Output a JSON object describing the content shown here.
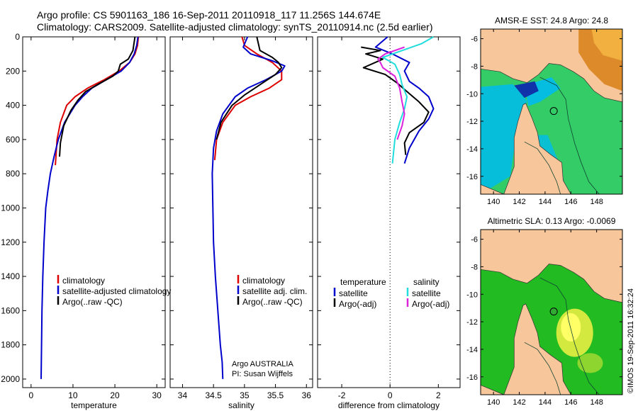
{
  "header": {
    "line1": "Argo profile: CS 5901163_186 16-Sep-2011 20110918_117 11.256S 144.674E",
    "line2": "Climatology: CARS2009. Satellite-adjusted climatology: synTS_20110914.nc (2.5d earlier)"
  },
  "footer": {
    "stamp": "©IMOS 19-Sep-2011 16:32:24"
  },
  "colors": {
    "climatology": "#dd0000",
    "satellite": "#0000cc",
    "argo": "#000000",
    "cyan": "#22dddd",
    "magenta": "#dd22dd",
    "land": "#f7c69b",
    "sst_cool": "#00bbee",
    "sst_ocean": "#33cc66",
    "sla_ocean": "#22bb22"
  },
  "chart_data": [
    {
      "type": "line",
      "title": "",
      "xlabel": "temperature",
      "ylabel": "",
      "xlim": [
        -2,
        32
      ],
      "ylim": [
        2050,
        0
      ],
      "xticks": [
        0,
        10,
        20,
        30
      ],
      "yticks": [
        0,
        200,
        400,
        600,
        800,
        1000,
        1200,
        1400,
        1600,
        1800,
        2000
      ],
      "legend": {
        "position": "lower-right",
        "entries": [
          "climatology",
          "satellite-adjusted climatology",
          "Argo(..raw -QC)"
        ]
      },
      "series": [
        {
          "name": "climatology",
          "color": "#dd0000",
          "x": [
            25.6,
            25.4,
            24.8,
            23.5,
            21,
            17.5,
            13.5,
            10.5,
            8.5,
            7,
            6.2,
            5.8
          ],
          "y": [
            0,
            50,
            100,
            150,
            200,
            250,
            300,
            350,
            400,
            500,
            600,
            750
          ]
        },
        {
          "name": "satellite-adjusted climatology",
          "color": "#0000cc",
          "x": [
            25.5,
            25.2,
            24.6,
            23.5,
            21.5,
            18,
            14.5,
            12.3,
            10.5,
            8,
            6.5,
            5.5,
            4.6,
            4,
            3.5,
            3.1,
            2.8,
            2.6,
            2.5,
            2.45,
            2.4
          ],
          "y": [
            0,
            50,
            100,
            150,
            200,
            250,
            300,
            350,
            400,
            500,
            600,
            700,
            800,
            900,
            1000,
            1200,
            1400,
            1600,
            1800,
            1900,
            2000
          ]
        },
        {
          "name": "Argo(..raw -QC)",
          "color": "#000000",
          "x": [
            24.8,
            24.3,
            23.2,
            21.3,
            20.8,
            19.5,
            16.5,
            13,
            11.2,
            9.5,
            7.8,
            7,
            6.8
          ],
          "y": [
            0,
            80,
            130,
            160,
            200,
            230,
            270,
            320,
            370,
            430,
            520,
            620,
            700
          ]
        }
      ]
    },
    {
      "type": "line",
      "title": "",
      "xlabel": "salinity",
      "ylabel": "",
      "xlim": [
        33.8,
        36.1
      ],
      "ylim": [
        2050,
        0
      ],
      "xticks": [
        34,
        34.5,
        35,
        35.5,
        36
      ],
      "yticks": [
        0,
        200,
        400,
        600,
        800,
        1000,
        1200,
        1400,
        1600,
        1800,
        2000
      ],
      "legend": {
        "position": "lower-right",
        "entries": [
          "climatology",
          "satellite adj. clim.",
          "Argo(..raw -QC)"
        ]
      },
      "annotation": [
        "Argo AUSTRALIA",
        "PI: Susan Wijffels"
      ],
      "series": [
        {
          "name": "climatology",
          "color": "#dd0000",
          "x": [
            34.96,
            35.0,
            35.2,
            35.45,
            35.6,
            35.6,
            35.4,
            35.1,
            34.85,
            34.65,
            34.55,
            34.52
          ],
          "y": [
            0,
            50,
            100,
            150,
            200,
            250,
            300,
            350,
            400,
            500,
            600,
            720
          ]
        },
        {
          "name": "satellite adj. clim.",
          "color": "#0000cc",
          "x": [
            35.05,
            34.98,
            35.1,
            35.45,
            35.65,
            35.6,
            35.35,
            35.05,
            34.85,
            34.65,
            34.55,
            34.5,
            34.48,
            34.49,
            34.5,
            34.53,
            34.57,
            34.61,
            34.64,
            34.65
          ],
          "y": [
            0,
            60,
            100,
            140,
            170,
            200,
            250,
            300,
            350,
            450,
            550,
            650,
            800,
            1000,
            1200,
            1400,
            1600,
            1800,
            1900,
            2000
          ]
        },
        {
          "name": "Argo(..raw -QC)",
          "color": "#000000",
          "x": [
            35.2,
            35.25,
            35.45,
            35.55,
            35.6,
            35.5,
            35.25,
            35.0,
            34.8,
            34.62,
            34.55
          ],
          "y": [
            0,
            80,
            120,
            150,
            180,
            220,
            280,
            340,
            400,
            500,
            600
          ]
        }
      ]
    },
    {
      "type": "line",
      "title": "",
      "xlabel": "difference from climatology",
      "ylabel": "",
      "xlim": [
        -3,
        2.9
      ],
      "ylim": [
        2050,
        0
      ],
      "xticks": [
        -2,
        0,
        2
      ],
      "yticks": [
        0,
        200,
        400,
        600,
        800,
        1000,
        1200,
        1400,
        1600,
        1800,
        2000
      ],
      "legend": {
        "position": "lower",
        "groups": [
          {
            "header": "temperature",
            "entries": [
              "satellite",
              "Argo(-adj)"
            ]
          },
          {
            "header": "salinity",
            "entries": [
              "satellite",
              "Argo(-adj)"
            ]
          }
        ]
      },
      "series": [
        {
          "name": "temperature satellite",
          "color": "#0000cc",
          "x": [
            -0.1,
            -0.6,
            0.1,
            0.8,
            0.6,
            0.8,
            1.2,
            1.6,
            1.8,
            1.6,
            1.2,
            0.8,
            0.6
          ],
          "y": [
            0,
            60,
            100,
            150,
            200,
            260,
            300,
            350,
            420,
            480,
            550,
            650,
            740
          ]
        },
        {
          "name": "temperature Argo(-adj)",
          "color": "#000000",
          "x": [
            -1.2,
            -0.4,
            -1.0,
            -0.3,
            -1.1,
            -0.2,
            0.3,
            0.7,
            1.2,
            1.6,
            1.4,
            0.8,
            0.6,
            0.65
          ],
          "y": [
            60,
            80,
            100,
            130,
            180,
            220,
            270,
            320,
            380,
            440,
            500,
            560,
            620,
            690
          ]
        },
        {
          "name": "salinity satellite",
          "color": "#22dddd",
          "x": [
            1.8,
            1.3,
            0.5,
            -0.3,
            0.2,
            0.4,
            0.5,
            0.7,
            0.6,
            0.4,
            0.2,
            0.1
          ],
          "y": [
            0,
            40,
            80,
            120,
            160,
            220,
            280,
            350,
            420,
            500,
            600,
            740
          ]
        },
        {
          "name": "salinity Argo(-adj)",
          "color": "#dd22dd",
          "x": [
            0.6,
            -0.2,
            -0.5,
            -0.4,
            -0.3,
            0.2,
            0.4,
            0.5,
            0.6,
            0.5,
            0.3
          ],
          "y": [
            60,
            100,
            130,
            150,
            180,
            230,
            300,
            380,
            450,
            520,
            600
          ]
        }
      ]
    },
    {
      "type": "heatmap",
      "title": "AMSR-E SST: 24.8 Argo: 24.8",
      "xticks": [
        140,
        142,
        144,
        146,
        148
      ],
      "yticks": [
        -6,
        -8,
        -10,
        -12,
        -14,
        -16
      ],
      "xlim": [
        139,
        150
      ],
      "ylim": [
        -17.3,
        -5.3
      ],
      "marker": {
        "lon": 144.674,
        "lat": -11.256
      }
    },
    {
      "type": "heatmap",
      "title": "Altimetric SLA: 0.13 Argo: -0.0069",
      "xticks": [
        140,
        142,
        144,
        146,
        148
      ],
      "yticks": [
        -6,
        -8,
        -10,
        -12,
        -14,
        -16
      ],
      "xlim": [
        139,
        150
      ],
      "ylim": [
        -17.3,
        -5.3
      ],
      "marker": {
        "lon": 144.674,
        "lat": -11.256
      }
    }
  ]
}
